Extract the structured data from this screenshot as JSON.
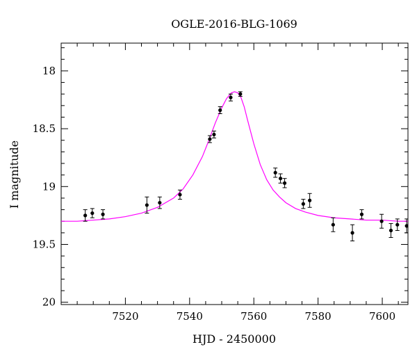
{
  "chart_data": {
    "type": "scatter",
    "title": "OGLE-2016-BLG-1069",
    "xlabel": "HJD - 2450000",
    "ylabel": "I magnitude",
    "xlim": [
      7500,
      7608
    ],
    "ylim": [
      20.02,
      17.76
    ],
    "y_inverted": true,
    "grid": false,
    "legend": "none",
    "x_ticks": [
      7520,
      7540,
      7560,
      7580,
      7600
    ],
    "x_tick_labels": [
      "7520",
      "7540",
      "7560",
      "7580",
      "7600"
    ],
    "y_ticks": [
      18,
      18.5,
      19,
      19.5,
      20
    ],
    "y_tick_labels": [
      "18",
      "18.5",
      "19",
      "19.5",
      "20"
    ],
    "colors": {
      "model": "#ff00ff",
      "points": "#000000",
      "axes": "#000000"
    },
    "series": [
      {
        "kind": "points_with_errorbars",
        "x": [
          7507.5,
          7509.7,
          7513.0,
          7526.7,
          7530.7,
          7537.0,
          7546.3,
          7547.6,
          7549.5,
          7552.8,
          7555.8,
          7566.7,
          7568.3,
          7569.6,
          7575.4,
          7577.4,
          7584.7,
          7590.7,
          7593.6,
          7599.8,
          7602.7,
          7604.7,
          7607.6
        ],
        "y": [
          19.25,
          19.23,
          19.24,
          19.16,
          19.14,
          19.07,
          18.59,
          18.55,
          18.34,
          18.23,
          18.2,
          18.88,
          18.93,
          18.97,
          19.15,
          19.12,
          19.33,
          19.4,
          19.24,
          19.3,
          19.38,
          19.33,
          19.34
        ],
        "yerr": [
          0.05,
          0.04,
          0.04,
          0.07,
          0.05,
          0.04,
          0.03,
          0.03,
          0.03,
          0.03,
          0.02,
          0.04,
          0.04,
          0.04,
          0.04,
          0.06,
          0.06,
          0.07,
          0.04,
          0.06,
          0.06,
          0.05,
          0.06
        ]
      },
      {
        "kind": "model_curve",
        "x": [
          7500,
          7505,
          7510,
          7515,
          7520,
          7525,
          7530,
          7535,
          7538,
          7541,
          7544,
          7546,
          7548,
          7550,
          7551.5,
          7553,
          7554,
          7555,
          7556,
          7557,
          7558,
          7560,
          7562,
          7564,
          7566,
          7568,
          7570,
          7573,
          7576,
          7580,
          7585,
          7590,
          7595,
          7600,
          7605,
          7608
        ],
        "y": [
          19.3,
          19.3,
          19.29,
          19.28,
          19.26,
          19.23,
          19.18,
          19.1,
          19.02,
          18.9,
          18.74,
          18.6,
          18.45,
          18.32,
          18.24,
          18.19,
          18.18,
          18.19,
          18.23,
          18.31,
          18.42,
          18.63,
          18.81,
          18.94,
          19.03,
          19.09,
          19.14,
          19.19,
          19.22,
          19.25,
          19.27,
          19.28,
          19.29,
          19.29,
          19.3,
          19.3
        ]
      }
    ]
  }
}
